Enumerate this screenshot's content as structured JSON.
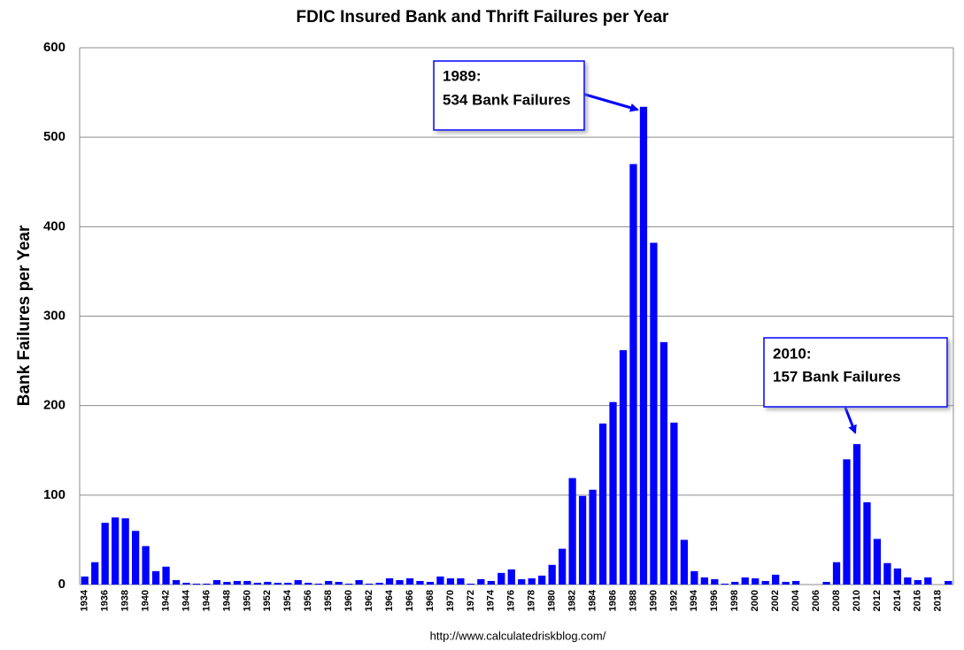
{
  "chart_data": {
    "type": "bar",
    "title": "FDIC Insured Bank and Thrift Failures per Year",
    "y_label": "Bank Failures per Year",
    "source": "http://www.calculatedriskblog.com/",
    "categories": [
      "1934",
      null,
      "1936",
      null,
      "1938",
      null,
      "1940",
      null,
      "1942",
      null,
      "1944",
      null,
      "1946",
      null,
      "1948",
      null,
      "1950",
      null,
      "1952",
      null,
      "1954",
      null,
      "1956",
      null,
      "1958",
      null,
      "1960",
      null,
      "1962",
      null,
      "1964",
      null,
      "1966",
      null,
      "1968",
      null,
      "1970",
      null,
      "1972",
      null,
      "1974",
      null,
      "1976",
      null,
      "1978",
      null,
      "1980",
      null,
      "1982",
      null,
      "1984",
      null,
      "1986",
      null,
      "1988",
      null,
      "1990",
      null,
      "1992",
      null,
      "1994",
      null,
      "1996",
      null,
      "1998",
      null,
      "2000",
      null,
      "2002",
      null,
      "2004",
      null,
      "2006",
      null,
      "2008",
      null,
      "2010",
      null,
      "2012",
      null,
      "2014",
      null,
      "2016",
      null,
      "2018",
      null
    ],
    "values": [
      9,
      25,
      69,
      75,
      74,
      60,
      43,
      15,
      20,
      5,
      2,
      1,
      1,
      5,
      3,
      4,
      4,
      2,
      3,
      2,
      2,
      5,
      2,
      1,
      4,
      3,
      1,
      5,
      1,
      2,
      7,
      5,
      7,
      4,
      3,
      9,
      7,
      7,
      1,
      6,
      4,
      13,
      17,
      6,
      7,
      10,
      22,
      40,
      119,
      99,
      106,
      180,
      204,
      262,
      470,
      534,
      382,
      271,
      181,
      50,
      15,
      8,
      6,
      1,
      3,
      8,
      7,
      4,
      11,
      3,
      4,
      0,
      0,
      3,
      25,
      140,
      157,
      92,
      51,
      24,
      18,
      8,
      5,
      8,
      0,
      4
    ],
    "color": "#0000ff",
    "ylim": [
      0,
      600
    ],
    "yticks": [
      0,
      100,
      200,
      300,
      400,
      500,
      600
    ],
    "grid": true,
    "annotations": [
      {
        "title": "1989:",
        "text": "534 Bank Failures"
      },
      {
        "title": "2010:",
        "text": "157 Bank Failures"
      }
    ]
  }
}
